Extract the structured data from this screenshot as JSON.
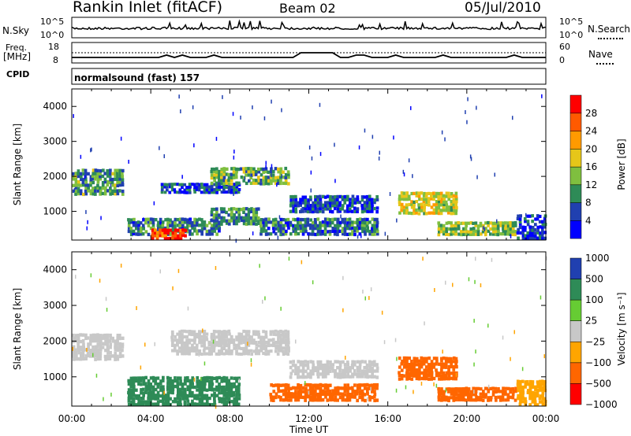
{
  "header": {
    "station": "Rankin Inlet (fitACF)",
    "beam": "Beam 02",
    "date": "05/Jul/2010"
  },
  "nsky_panel": {
    "left_label": "N.Sky",
    "left_ticks": [
      "10^5",
      "10^0"
    ],
    "right_ticks": [
      "10^5",
      "10^0"
    ],
    "right_label": "N.Search"
  },
  "freq_panel": {
    "left_label_1": "Freq.",
    "left_label_2": "[MHz]",
    "left_ticks": [
      "18",
      "8"
    ],
    "right_ticks": [
      "60",
      "0"
    ],
    "right_label": "Nave"
  },
  "cpid": {
    "label": "CPID",
    "text": "normalsound (fast) 157"
  },
  "xaxis": {
    "label": "Time UT",
    "ticks": [
      "00:00",
      "04:00",
      "08:00",
      "12:00",
      "16:00",
      "20:00",
      "00:00"
    ]
  },
  "colors": {
    "power": [
      "#0000ff",
      "#2040b0",
      "#2e8b57",
      "#7fbf3f",
      "#e6c619",
      "#ff9a00",
      "#ff5a00",
      "#ff0000"
    ],
    "velocity": [
      "#2040b0",
      "#2e8b57",
      "#66cc33",
      "#c8c8c8",
      "#ffa500",
      "#ff6600",
      "#ff0000"
    ]
  },
  "chart_data": [
    {
      "type": "heatmap",
      "title": "",
      "xlabel": "Time UT",
      "ylabel": "Slant Range [km]",
      "xlim": [
        0,
        24
      ],
      "ylim": [
        180,
        4500
      ],
      "yticks": [
        "1000",
        "2000",
        "3000",
        "4000"
      ],
      "colorbar": {
        "label": "Power [dB]",
        "ticks": [
          "4",
          "8",
          "12",
          "16",
          "20",
          "24",
          "28"
        ],
        "range": [
          0,
          30
        ]
      },
      "regions": [
        {
          "t0": 0.0,
          "t1": 2.6,
          "r0": 1450,
          "r1": 2200,
          "value": 11
        },
        {
          "t0": 4.5,
          "t1": 8.5,
          "r0": 1500,
          "r1": 1800,
          "value": 6
        },
        {
          "t0": 7.0,
          "t1": 11.0,
          "r0": 1750,
          "r1": 2250,
          "value": 12
        },
        {
          "t0": 11.0,
          "t1": 15.5,
          "r0": 950,
          "r1": 1450,
          "value": 6
        },
        {
          "t0": 2.8,
          "t1": 7.5,
          "r0": 300,
          "r1": 800,
          "value": 9
        },
        {
          "t0": 4.0,
          "t1": 5.8,
          "r0": 180,
          "r1": 500,
          "value": 27
        },
        {
          "t0": 7.0,
          "t1": 9.5,
          "r0": 600,
          "r1": 1100,
          "value": 10
        },
        {
          "t0": 9.5,
          "t1": 15.5,
          "r0": 300,
          "r1": 800,
          "value": 8
        },
        {
          "t0": 16.5,
          "t1": 19.5,
          "r0": 900,
          "r1": 1550,
          "value": 17
        },
        {
          "t0": 18.5,
          "t1": 22.5,
          "r0": 300,
          "r1": 700,
          "value": 14
        },
        {
          "t0": 22.5,
          "t1": 24.0,
          "r0": 180,
          "r1": 900,
          "value": 5
        }
      ]
    },
    {
      "type": "heatmap",
      "title": "",
      "xlabel": "Time UT",
      "ylabel": "Slant Range [km]",
      "xlim": [
        0,
        24
      ],
      "ylim": [
        180,
        4500
      ],
      "yticks": [
        "1000",
        "2000",
        "3000",
        "4000"
      ],
      "colorbar": {
        "label": "Velocity [m s⁻¹]",
        "ticks": [
          "1000",
          "500",
          "100",
          "25",
          "−25",
          "−100",
          "−500",
          "−1000"
        ]
      },
      "regions": [
        {
          "t0": 0.0,
          "t1": 2.6,
          "r0": 1450,
          "r1": 2200,
          "value": 0
        },
        {
          "t0": 5.0,
          "t1": 11.0,
          "r0": 1600,
          "r1": 2300,
          "value": 0
        },
        {
          "t0": 11.0,
          "t1": 15.5,
          "r0": 950,
          "r1": 1450,
          "value": 0
        },
        {
          "t0": 2.8,
          "t1": 8.5,
          "r0": 180,
          "r1": 1000,
          "value": 150
        },
        {
          "t0": 10.0,
          "t1": 15.5,
          "r0": 300,
          "r1": 800,
          "value": -150
        },
        {
          "t0": 16.5,
          "t1": 19.5,
          "r0": 900,
          "r1": 1550,
          "value": -300
        },
        {
          "t0": 18.5,
          "t1": 22.5,
          "r0": 300,
          "r1": 700,
          "value": -250
        },
        {
          "t0": 22.5,
          "t1": 24.0,
          "r0": 180,
          "r1": 900,
          "value": -50
        }
      ]
    }
  ]
}
